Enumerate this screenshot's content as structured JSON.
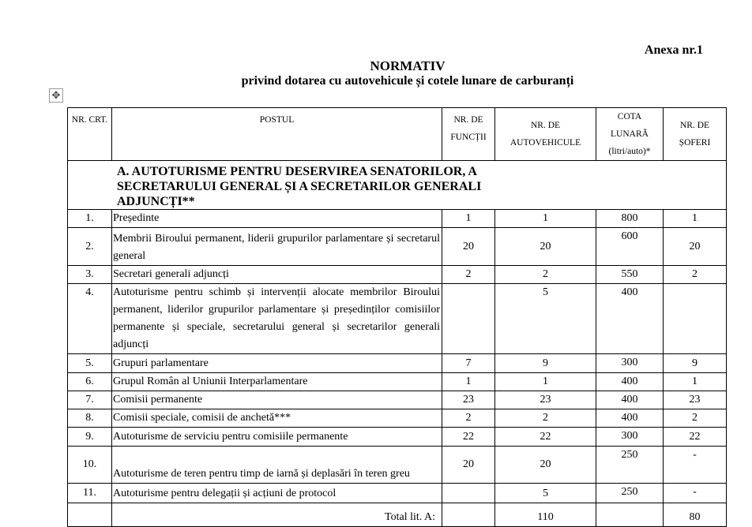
{
  "annex": "Anexa nr.1",
  "title": "NORMATIV",
  "subtitle": "privind dotarea cu autovehicule și cotele lunare de carburanți",
  "table_move_icon": "move-arrows-icon",
  "headers": {
    "nr_crt": "NR. CRT.",
    "postul": "POSTUL",
    "nr_functii": "NR. DE FUNCȚII",
    "nr_auto": "NR. DE AUTOVEHICULE",
    "cota": "COTA LUNARĂ (litri/auto)*",
    "nr_soferi": "NR. DE ȘOFERI"
  },
  "section_a": "A. AUTOTURISME PENTRU DESERVIREA SENATORILOR, A SECRETARULUI GENERAL ȘI A SECRETARILOR GENERALI ADJUNCȚI**",
  "rows": [
    {
      "nr": "1.",
      "post": "Președinte",
      "functii": "1",
      "auto": "1",
      "cota": "800",
      "soferi": "1"
    },
    {
      "nr": "2.",
      "post": "Membrii Biroului permanent, liderii grupurilor parlamentare și secretarul general",
      "functii": "20",
      "auto": "20",
      "cota": "600",
      "soferi": "20"
    },
    {
      "nr": "3.",
      "post": "Secretari generali adjuncți",
      "functii": "2",
      "auto": "2",
      "cota": "550",
      "soferi": "2"
    },
    {
      "nr": "4.",
      "post": "Autoturisme pentru schimb și intervenții alocate membrilor Biroului permanent, liderilor grupurilor parlamentare și președinților comisiilor permanente și speciale, secretarului general și secretarilor generali adjuncți",
      "functii": "",
      "auto": "5",
      "cota": "400",
      "soferi": ""
    },
    {
      "nr": "5.",
      "post": "Grupuri parlamentare",
      "functii": "7",
      "auto": "9",
      "cota": "300",
      "soferi": "9"
    },
    {
      "nr": "6.",
      "post": "Grupul Român al Uniunii Interparlamentare",
      "functii": "1",
      "auto": "1",
      "cota": "400",
      "soferi": "1"
    },
    {
      "nr": "7.",
      "post": "Comisii permanente",
      "functii": "23",
      "auto": "23",
      "cota": "400",
      "soferi": "23"
    },
    {
      "nr": "8.",
      "post": "Comisii speciale, comisii de anchetă***",
      "functii": "2",
      "auto": "2",
      "cota": "400",
      "soferi": "2"
    },
    {
      "nr": "9.",
      "post": "Autoturisme de serviciu pentru comisiile permanente",
      "functii": "22",
      "auto": "22",
      "cota": "300",
      "soferi": "22"
    },
    {
      "nr": "10.",
      "post": "Autoturisme de teren pentru timp de iarnă și deplasări în teren greu",
      "functii": "20",
      "auto": "20",
      "cota": "250",
      "soferi": "-"
    },
    {
      "nr": "11.",
      "post": "Autoturisme pentru delegații și acțiuni de protocol",
      "functii": "",
      "auto": "5",
      "cota": "250",
      "soferi": "-"
    }
  ],
  "total": {
    "label": "Total lit. A:",
    "auto": "110",
    "soferi": "80"
  }
}
